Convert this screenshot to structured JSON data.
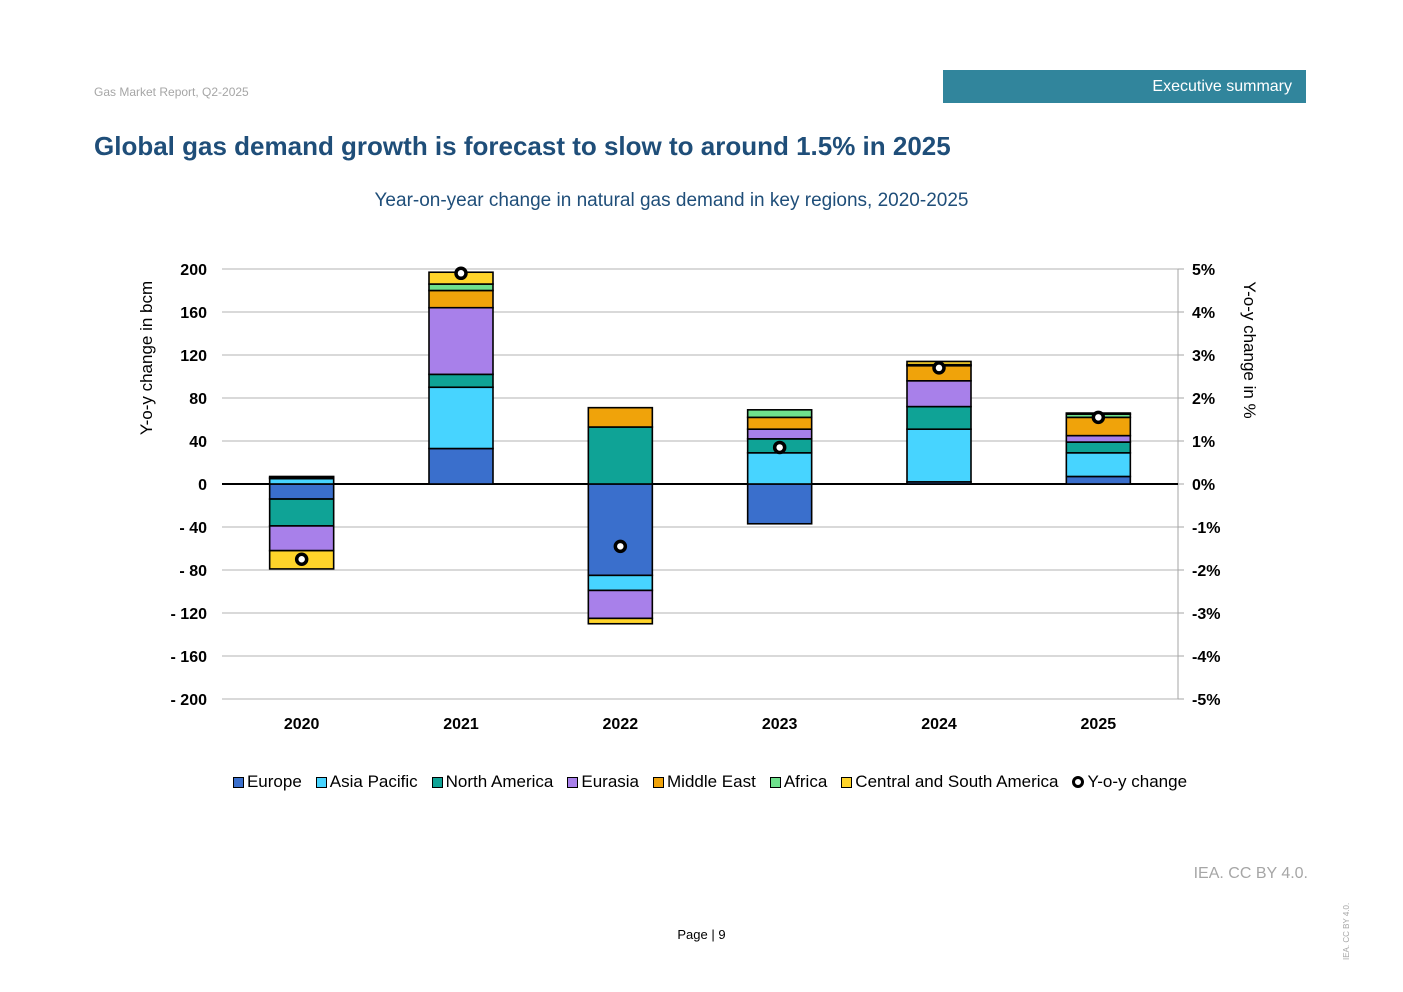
{
  "header": {
    "report_label": "Gas Market Report, Q2-2025",
    "section": "Executive summary"
  },
  "page_title": "Global gas demand growth is forecast to slow to around 1.5% in 2025",
  "chart_data": {
    "type": "bar",
    "title": "Year-on-year change in natural gas demand in key regions, 2020-2025",
    "stacked": true,
    "ylabel": "Y-o-y change in bcm",
    "y2label": "Y-o-y change in %",
    "ylim": [
      -200,
      200
    ],
    "yticks": [
      200,
      160,
      120,
      80,
      40,
      0,
      -40,
      -80,
      -120,
      -160,
      -200
    ],
    "ytick_labels": [
      "200",
      "160",
      "120",
      "80",
      "40",
      "0",
      "- 40",
      "- 80",
      "- 120",
      "- 160",
      "- 200"
    ],
    "y2lim": [
      -5,
      5
    ],
    "y2ticks": [
      5,
      4,
      3,
      2,
      1,
      0,
      -1,
      -2,
      -3,
      -4,
      -5
    ],
    "y2tick_labels": [
      "5%",
      "4%",
      "3%",
      "2%",
      "1%",
      "0%",
      "-1%",
      "-2%",
      "-3%",
      "-4%",
      "-5%"
    ],
    "grid": true,
    "legend_position": "bottom",
    "categories": [
      "2020",
      "2021",
      "2022",
      "2023",
      "2024",
      "2025"
    ],
    "series": [
      {
        "name": "Europe",
        "color": "#3a6fcc",
        "values": [
          -14,
          33,
          -85,
          -37,
          2,
          7
        ]
      },
      {
        "name": "Asia Pacific",
        "color": "#47d4ff",
        "values": [
          5,
          57,
          -14,
          29,
          49,
          22
        ]
      },
      {
        "name": "North America",
        "color": "#0fa396",
        "values": [
          -25,
          12,
          53,
          13,
          21,
          10
        ]
      },
      {
        "name": "Eurasia",
        "color": "#a880ea",
        "values": [
          -23,
          62,
          -26,
          9,
          24,
          6
        ]
      },
      {
        "name": "Middle East",
        "color": "#f0a30a",
        "values": [
          1,
          16,
          18,
          11,
          14,
          17
        ]
      },
      {
        "name": "Africa",
        "color": "#6ee08c",
        "values": [
          1,
          6,
          0,
          7,
          1,
          3
        ]
      },
      {
        "name": "Central and South America",
        "color": "#ffd42a",
        "values": [
          -17,
          11,
          -5,
          0,
          3,
          1
        ]
      }
    ],
    "line_series": {
      "name": "Y-o-y change",
      "axis": "right",
      "unit": "%",
      "values": [
        -1.75,
        4.9,
        -1.45,
        0.85,
        2.7,
        1.55
      ]
    }
  },
  "source_credit": "IEA. CC BY 4.0.",
  "page_number": "Page | 9",
  "side_credit": "IEA. CC BY 4.0."
}
